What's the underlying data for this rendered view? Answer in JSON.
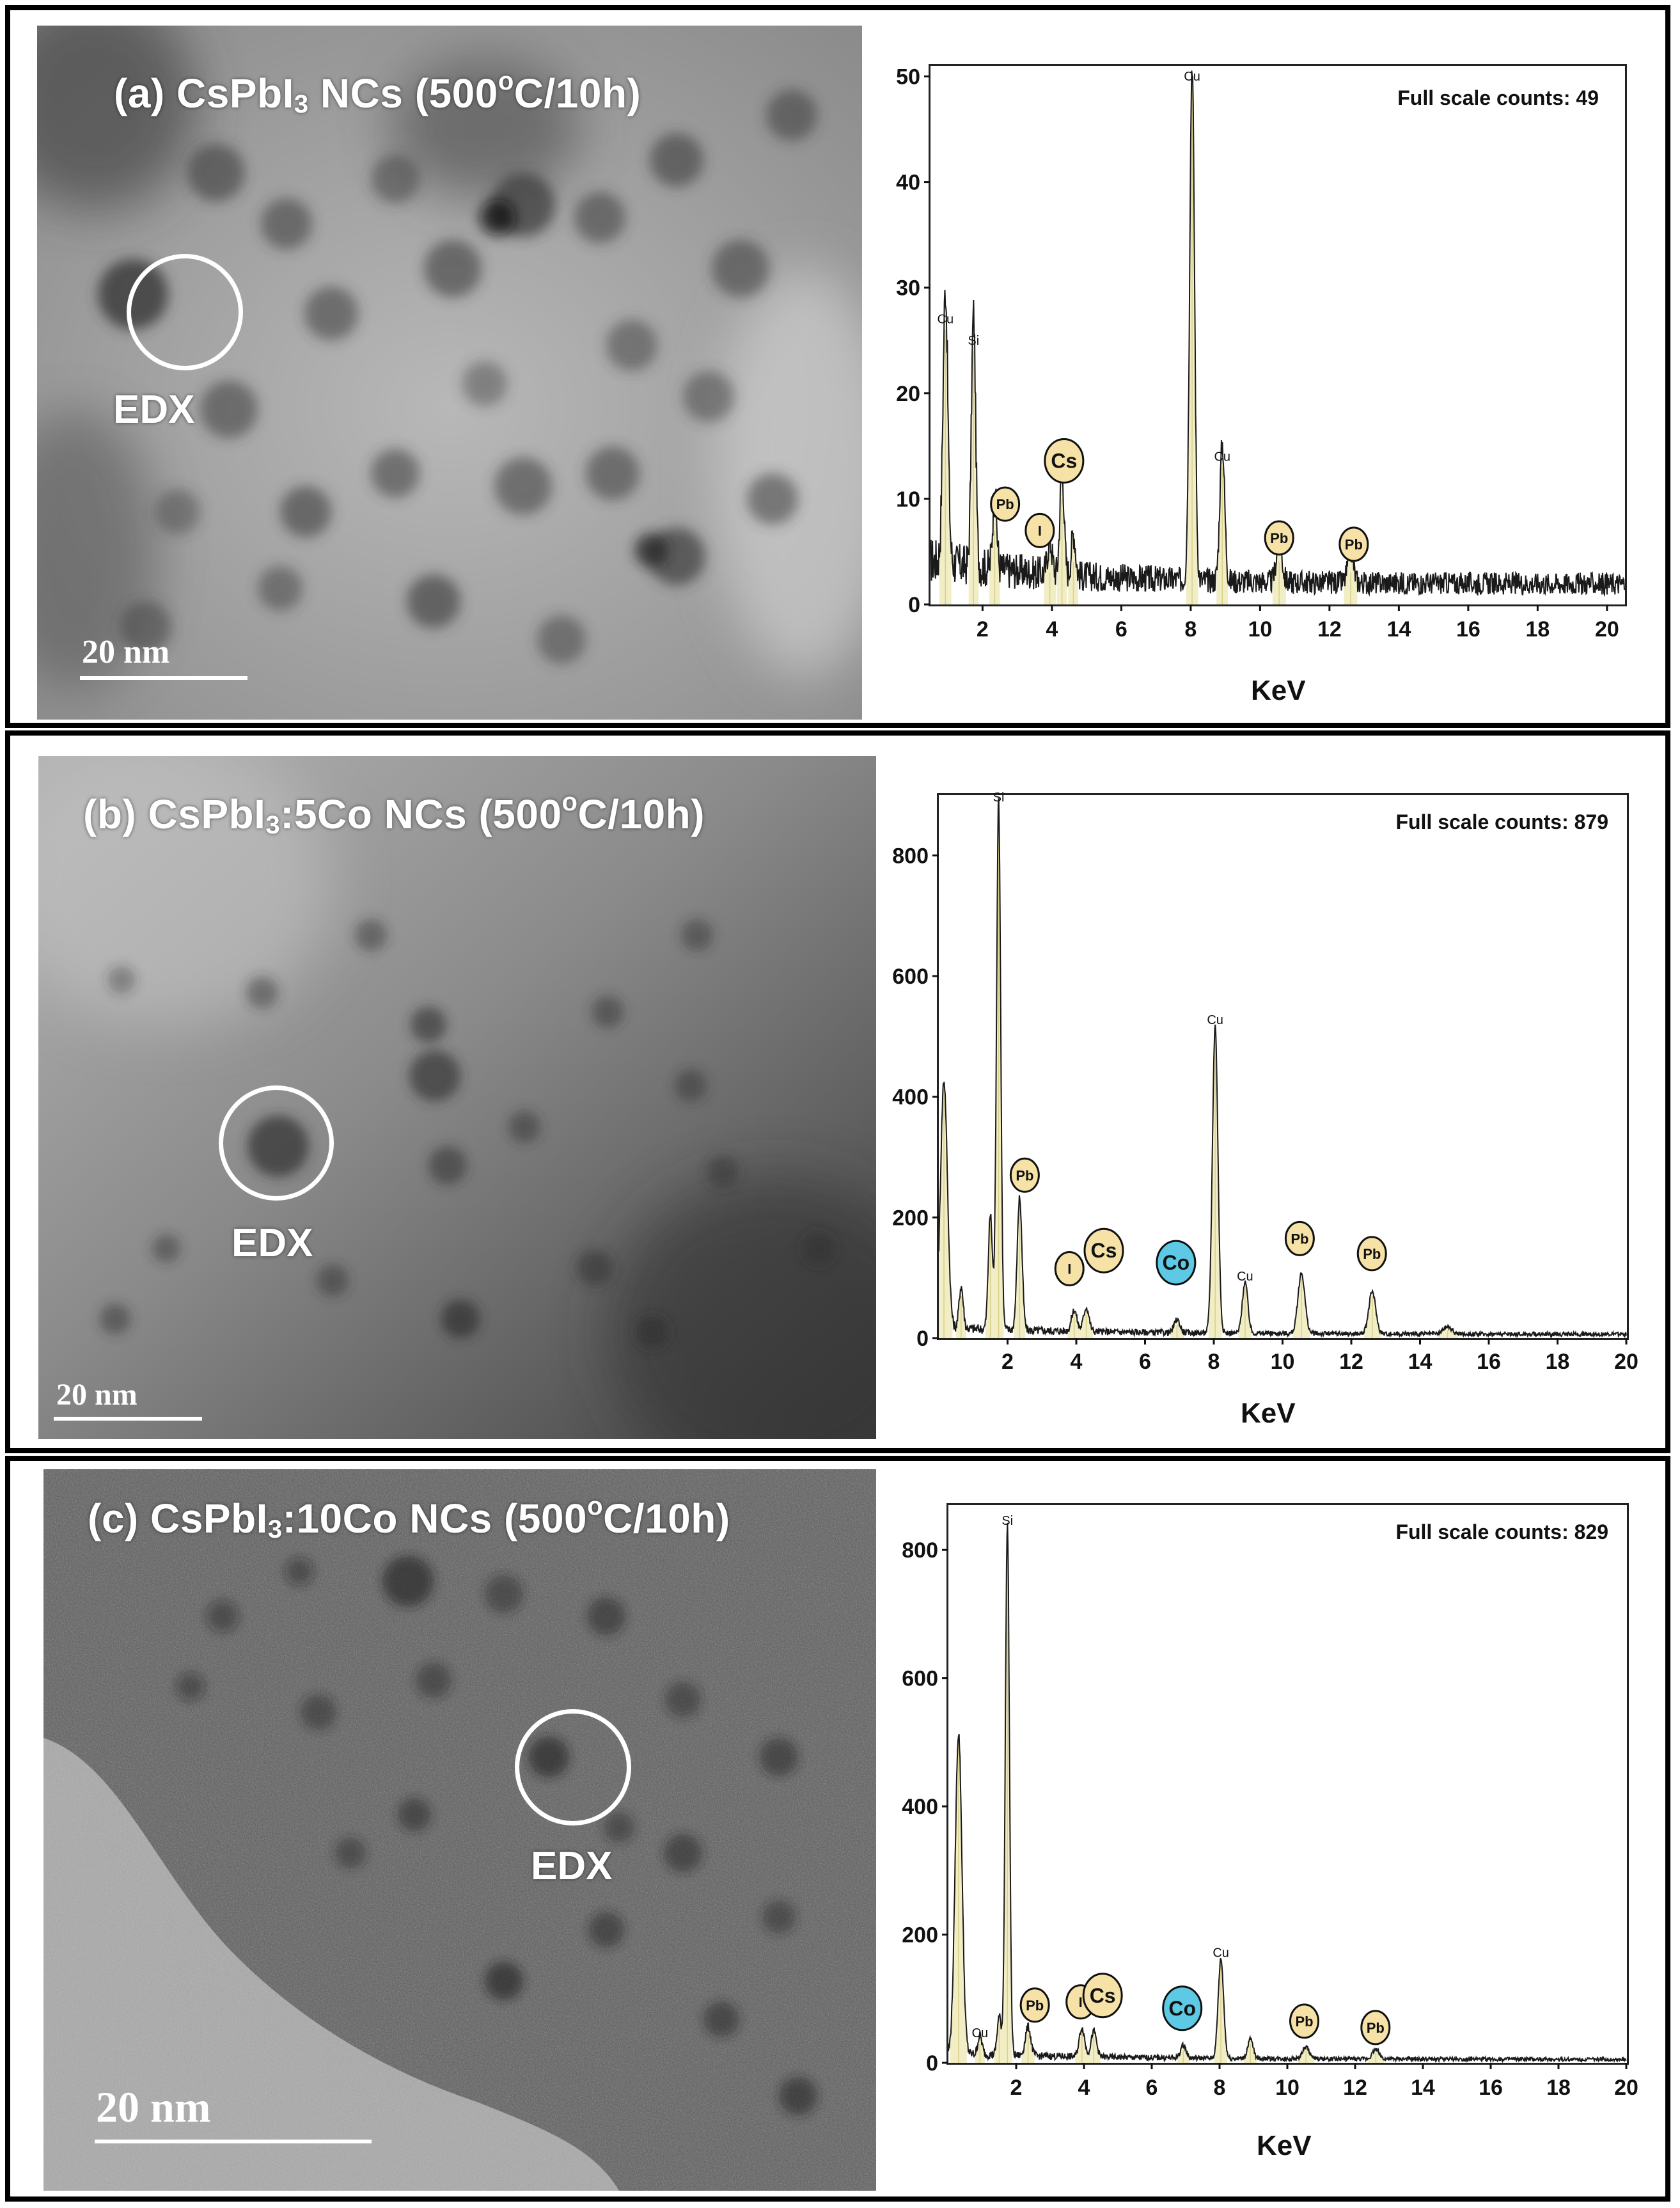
{
  "panels": [
    {
      "id": "a",
      "title_prefix": "(a) CsPbI",
      "title_sub": "3",
      "title_mid": " NCs (500",
      "title_sup": "o",
      "title_suffix": "C/10h)",
      "edx_label": "EDX",
      "scale_label": "20 nm",
      "full_scale": "Full scale counts: 49"
    },
    {
      "id": "b",
      "title_prefix": "(b) CsPbI",
      "title_sub": "3",
      "title_mid": ":5Co NCs (500",
      "title_sup": "o",
      "title_suffix": "C/10h)",
      "edx_label": "EDX",
      "scale_label": "20 nm",
      "full_scale": "Full scale counts: 879"
    },
    {
      "id": "c",
      "title_prefix": "(c) CsPbI",
      "title_sub": "3",
      "title_mid": ":10Co NCs (500",
      "title_sup": "o",
      "title_suffix": "C/10h)",
      "edx_label": "EDX",
      "scale_label": "20 nm",
      "full_scale": "Full scale counts: 829"
    }
  ],
  "colors": {
    "line": "#1a1a1a",
    "peak_fill": "#f1edc4",
    "marker_yellow": "#f6e2a6",
    "marker_cyan": "#5ec9e4",
    "marker_stroke": "#111111",
    "frame": "#000000"
  },
  "chart_data": [
    {
      "type": "line",
      "panel": "a",
      "xlabel": "KeV",
      "ylabel": "",
      "xlim": [
        0.5,
        20.5
      ],
      "ylim": [
        0,
        51
      ],
      "xticks": [
        2,
        4,
        6,
        8,
        10,
        12,
        14,
        16,
        18,
        20
      ],
      "yticks": [
        0,
        10,
        20,
        30,
        40,
        50
      ],
      "grid": false,
      "background_noise": 1.5,
      "peaks": [
        {
          "x": 0.93,
          "y": 26,
          "w": 0.07
        },
        {
          "x": 1.74,
          "y": 24,
          "w": 0.06
        },
        {
          "x": 2.35,
          "y": 7,
          "w": 0.06
        },
        {
          "x": 3.94,
          "y": 3,
          "w": 0.07
        },
        {
          "x": 4.29,
          "y": 10,
          "w": 0.06
        },
        {
          "x": 4.62,
          "y": 4,
          "w": 0.06
        },
        {
          "x": 8.04,
          "y": 49,
          "w": 0.07
        },
        {
          "x": 8.91,
          "y": 13,
          "w": 0.07
        },
        {
          "x": 10.55,
          "y": 4,
          "w": 0.08
        },
        {
          "x": 12.61,
          "y": 3,
          "w": 0.08
        }
      ],
      "peak_labels": [
        {
          "text": "Cu",
          "x": 0.93,
          "y": 26
        },
        {
          "text": "Si",
          "x": 1.74,
          "y": 24
        },
        {
          "text": "Cu",
          "x": 8.04,
          "y": 49
        },
        {
          "text": "Cu",
          "x": 8.91,
          "y": 13
        }
      ],
      "element_markers": [
        {
          "text": "Pb",
          "x": 2.65,
          "y": 9.5,
          "color": "yellow",
          "size": "small"
        },
        {
          "text": "I",
          "x": 3.65,
          "y": 7,
          "color": "yellow",
          "size": "small"
        },
        {
          "text": "Cs",
          "x": 4.35,
          "y": 13.6,
          "color": "yellow",
          "size": "large"
        },
        {
          "text": "Pb",
          "x": 10.55,
          "y": 6.3,
          "color": "yellow",
          "size": "small"
        },
        {
          "text": "Pb",
          "x": 12.7,
          "y": 5.7,
          "color": "yellow",
          "size": "small"
        }
      ]
    },
    {
      "type": "line",
      "panel": "b",
      "xlabel": "KeV",
      "ylabel": "",
      "xlim": [
        0.0,
        20.0
      ],
      "ylim": [
        0,
        900
      ],
      "xticks": [
        2,
        4,
        6,
        8,
        10,
        12,
        14,
        16,
        18,
        20
      ],
      "yticks": [
        0,
        200,
        400,
        600,
        800
      ],
      "grid": false,
      "background_noise": 6,
      "peaks": [
        {
          "x": 0.15,
          "y": 410,
          "w": 0.1
        },
        {
          "x": 0.65,
          "y": 70,
          "w": 0.06
        },
        {
          "x": 1.5,
          "y": 190,
          "w": 0.06
        },
        {
          "x": 1.74,
          "y": 879,
          "w": 0.06
        },
        {
          "x": 2.35,
          "y": 220,
          "w": 0.07
        },
        {
          "x": 3.94,
          "y": 35,
          "w": 0.08
        },
        {
          "x": 4.29,
          "y": 40,
          "w": 0.08
        },
        {
          "x": 6.93,
          "y": 22,
          "w": 0.08
        },
        {
          "x": 8.04,
          "y": 510,
          "w": 0.08
        },
        {
          "x": 8.91,
          "y": 85,
          "w": 0.08
        },
        {
          "x": 10.55,
          "y": 100,
          "w": 0.1
        },
        {
          "x": 12.61,
          "y": 70,
          "w": 0.1
        },
        {
          "x": 14.8,
          "y": 12,
          "w": 0.12
        }
      ],
      "peak_labels": [
        {
          "text": "Si",
          "x": 1.74,
          "y": 879
        },
        {
          "text": "Cu",
          "x": 8.04,
          "y": 510
        },
        {
          "text": "Cu",
          "x": 8.91,
          "y": 85
        }
      ],
      "element_markers": [
        {
          "text": "Pb",
          "x": 2.5,
          "y": 270,
          "color": "yellow",
          "size": "small"
        },
        {
          "text": "I",
          "x": 3.8,
          "y": 115,
          "color": "yellow",
          "size": "small"
        },
        {
          "text": "Cs",
          "x": 4.8,
          "y": 145,
          "color": "yellow",
          "size": "large"
        },
        {
          "text": "Co",
          "x": 6.9,
          "y": 125,
          "color": "cyan",
          "size": "large"
        },
        {
          "text": "Pb",
          "x": 10.5,
          "y": 165,
          "color": "yellow",
          "size": "small"
        },
        {
          "text": "Pb",
          "x": 12.6,
          "y": 140,
          "color": "yellow",
          "size": "small"
        }
      ]
    },
    {
      "type": "line",
      "panel": "c",
      "xlabel": "KeV",
      "ylabel": "",
      "xlim": [
        0.0,
        20.0
      ],
      "ylim": [
        0,
        870
      ],
      "xticks": [
        2,
        4,
        6,
        8,
        10,
        12,
        14,
        16,
        18,
        20
      ],
      "yticks": [
        0,
        200,
        400,
        600,
        800
      ],
      "grid": false,
      "background_noise": 5,
      "peaks": [
        {
          "x": 0.3,
          "y": 500,
          "w": 0.1
        },
        {
          "x": 0.93,
          "y": 30,
          "w": 0.06
        },
        {
          "x": 1.5,
          "y": 60,
          "w": 0.06
        },
        {
          "x": 1.74,
          "y": 829,
          "w": 0.06
        },
        {
          "x": 2.35,
          "y": 45,
          "w": 0.08
        },
        {
          "x": 3.94,
          "y": 45,
          "w": 0.08
        },
        {
          "x": 4.29,
          "y": 40,
          "w": 0.08
        },
        {
          "x": 6.93,
          "y": 20,
          "w": 0.08
        },
        {
          "x": 8.04,
          "y": 155,
          "w": 0.08
        },
        {
          "x": 8.91,
          "y": 30,
          "w": 0.08
        },
        {
          "x": 10.55,
          "y": 18,
          "w": 0.1
        },
        {
          "x": 12.61,
          "y": 15,
          "w": 0.1
        }
      ],
      "peak_labels": [
        {
          "text": "Si",
          "x": 1.74,
          "y": 829
        },
        {
          "text": "Cu",
          "x": 0.93,
          "y": 30
        },
        {
          "text": "Cu",
          "x": 8.04,
          "y": 155
        }
      ],
      "element_markers": [
        {
          "text": "Pb",
          "x": 2.55,
          "y": 90,
          "color": "yellow",
          "size": "small"
        },
        {
          "text": "I",
          "x": 3.9,
          "y": 95,
          "color": "yellow",
          "size": "small"
        },
        {
          "text": "Cs",
          "x": 4.55,
          "y": 105,
          "color": "yellow",
          "size": "large"
        },
        {
          "text": "Co",
          "x": 6.9,
          "y": 85,
          "color": "cyan",
          "size": "large"
        },
        {
          "text": "Pb",
          "x": 10.5,
          "y": 65,
          "color": "yellow",
          "size": "small"
        },
        {
          "text": "Pb",
          "x": 12.6,
          "y": 55,
          "color": "yellow",
          "size": "small"
        }
      ]
    }
  ]
}
